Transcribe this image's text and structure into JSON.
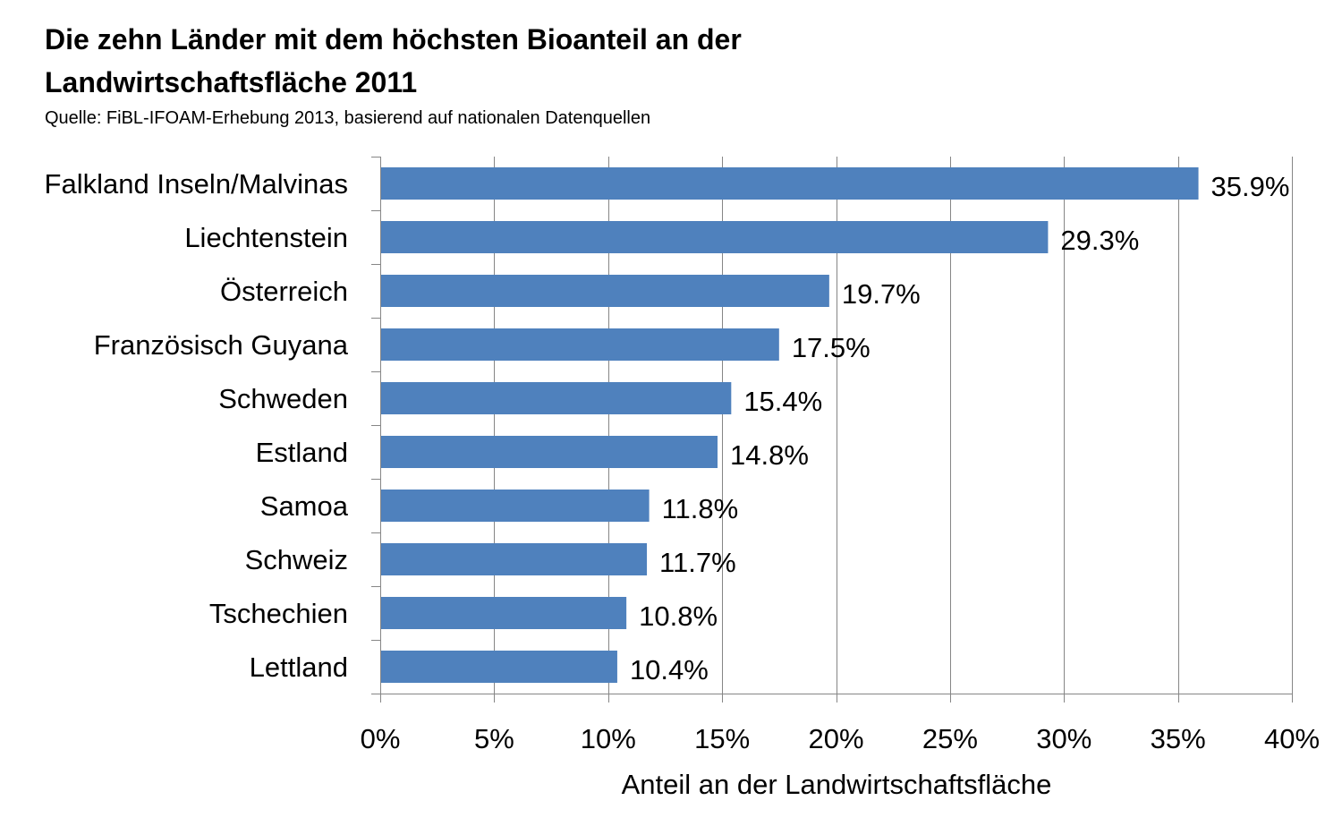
{
  "chart_data": {
    "type": "bar",
    "orientation": "horizontal",
    "title": "Die zehn Länder mit dem höchsten Bioanteil an der Landwirtschaftsfläche 2011",
    "subtitle": "Quelle: FiBL-IFOAM-Erhebung 2013, basierend auf nationalen Datenquellen",
    "xlabel": "Anteil an der Landwirtschaftsfläche",
    "ylabel": "",
    "categories": [
      "Falkland Inseln/Malvinas",
      "Liechtenstein",
      "Österreich",
      "Französisch Guyana",
      "Schweden",
      "Estland",
      "Samoa",
      "Schweiz",
      "Tschechien",
      "Lettland"
    ],
    "values": [
      35.9,
      29.3,
      19.7,
      17.5,
      15.4,
      14.8,
      11.8,
      11.7,
      10.8,
      10.4
    ],
    "data_labels": [
      "35.9%",
      "29.3%",
      "19.7%",
      "17.5%",
      "15.4%",
      "14.8%",
      "11.8%",
      "11.7%",
      "10.8%",
      "10.4%"
    ],
    "xlim": [
      0,
      40
    ],
    "x_ticks": [
      0,
      5,
      10,
      15,
      20,
      25,
      30,
      35,
      40
    ],
    "x_tick_labels": [
      "0%",
      "5%",
      "10%",
      "15%",
      "20%",
      "25%",
      "30%",
      "35%",
      "40%"
    ],
    "grid": "vertical",
    "legend": "none",
    "bar_color": "#4F81BD",
    "grid_color": "#868686"
  }
}
